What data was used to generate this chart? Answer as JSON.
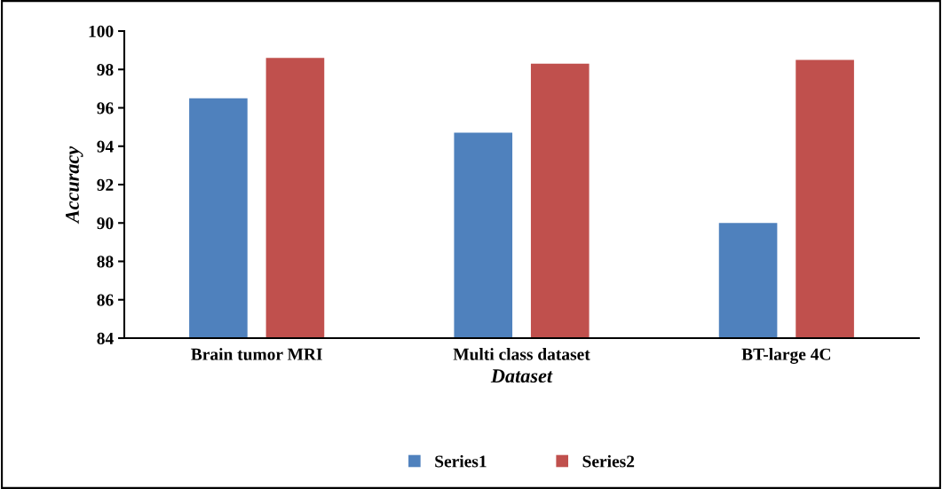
{
  "chart_data": {
    "type": "bar",
    "xlabel": "Dataset",
    "ylabel": "Accuracy",
    "categories": [
      "Brain tumor MRI",
      "Multi class dataset",
      "BT-large 4C"
    ],
    "series": [
      {
        "name": "Series1",
        "color": "#4f81bd",
        "values": [
          96.5,
          94.7,
          90.0
        ]
      },
      {
        "name": "Series2",
        "color": "#c0504d",
        "values": [
          98.6,
          98.3,
          98.5
        ]
      }
    ],
    "ylim": [
      84,
      100
    ],
    "yticks": [
      84,
      86,
      88,
      90,
      92,
      94,
      96,
      98,
      100
    ],
    "legend": "bottom",
    "grid": false
  }
}
